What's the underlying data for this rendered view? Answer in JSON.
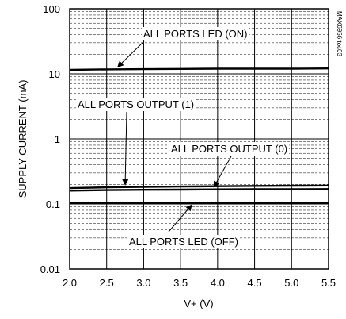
{
  "chart_data": {
    "type": "line",
    "xlabel": "V+ (V)",
    "ylabel": "SUPPLY CURRENT (mA)",
    "xlim": [
      2.0,
      5.5
    ],
    "ylim": [
      0.01,
      100
    ],
    "yscale": "log",
    "grid": true,
    "x_ticks": [
      2.0,
      2.5,
      3.0,
      3.5,
      4.0,
      4.5,
      5.0,
      5.5
    ],
    "x_tick_labels": [
      "2.0",
      "2.5",
      "3.0",
      "3.5",
      "4.0",
      "4.5",
      "5.0",
      "5.5"
    ],
    "y_ticks": [
      0.01,
      0.1,
      1,
      10,
      100
    ],
    "y_tick_labels": [
      "0.01",
      "0.1",
      "1",
      "10",
      "100"
    ],
    "side_label": "MAX6956 toc03",
    "series": [
      {
        "name": "ALL PORTS LED (ON)",
        "x": [
          2.0,
          2.5,
          3.0,
          3.5,
          4.0,
          4.5,
          5.0,
          5.5
        ],
        "y": [
          11.5,
          11.7,
          11.8,
          11.9,
          12.0,
          12.0,
          12.0,
          12.1
        ]
      },
      {
        "name": "ALL PORTS OUTPUT (1)",
        "x": [
          2.0,
          2.5,
          3.0,
          3.5,
          4.0,
          4.5,
          5.0,
          5.5
        ],
        "y": [
          0.175,
          0.18,
          0.183,
          0.185,
          0.187,
          0.189,
          0.19,
          0.192
        ]
      },
      {
        "name": "ALL PORTS OUTPUT (0)",
        "x": [
          2.0,
          2.5,
          3.0,
          3.5,
          4.0,
          4.5,
          5.0,
          5.5
        ],
        "y": [
          0.16,
          0.163,
          0.165,
          0.166,
          0.167,
          0.168,
          0.168,
          0.169
        ]
      },
      {
        "name": "ALL PORTS LED (OFF)",
        "x": [
          2.0,
          2.5,
          3.0,
          3.5,
          4.0,
          4.5,
          5.0,
          5.5
        ],
        "y": [
          0.105,
          0.105,
          0.105,
          0.105,
          0.105,
          0.105,
          0.105,
          0.105
        ]
      }
    ],
    "annotations": [
      {
        "text": "ALL PORTS LED (ON)",
        "series": "ALL PORTS LED (ON)"
      },
      {
        "text": "ALL PORTS OUTPUT (1)",
        "series": "ALL PORTS OUTPUT (1)"
      },
      {
        "text": "ALL PORTS OUTPUT (0)",
        "series": "ALL PORTS OUTPUT (0)"
      },
      {
        "text": "ALL PORTS LED (OFF)",
        "series": "ALL PORTS LED (OFF)"
      }
    ]
  }
}
